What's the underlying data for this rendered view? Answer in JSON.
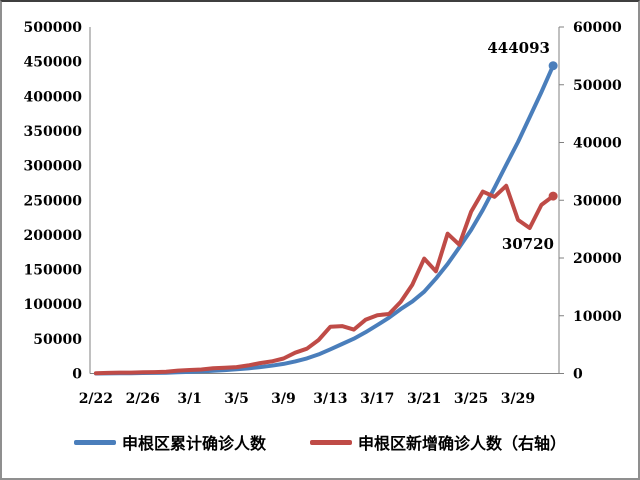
{
  "chart_data": {
    "type": "line",
    "title": "",
    "x": [
      "2/22",
      "2/23",
      "2/24",
      "2/25",
      "2/26",
      "2/27",
      "2/28",
      "2/29",
      "3/1",
      "3/2",
      "3/3",
      "3/4",
      "3/5",
      "3/6",
      "3/7",
      "3/8",
      "3/9",
      "3/10",
      "3/11",
      "3/12",
      "3/13",
      "3/14",
      "3/15",
      "3/16",
      "3/17",
      "3/18",
      "3/19",
      "3/20",
      "3/21",
      "3/22",
      "3/23",
      "3/24",
      "3/25",
      "3/26",
      "3/27",
      "3/28",
      "3/29",
      "3/30",
      "3/31",
      "4/1"
    ],
    "x_tick_every": 4,
    "x_tick_labels": [
      "2/22",
      "2/26",
      "3/1",
      "3/5",
      "3/9",
      "3/13",
      "3/17",
      "3/21",
      "3/25",
      "3/29"
    ],
    "grid": false,
    "legend_position": "bottom",
    "left_axis": {
      "min": 0,
      "max": 500000,
      "step": 50000,
      "tick_labels": [
        "0",
        "50000",
        "100000",
        "150000",
        "200000",
        "250000",
        "300000",
        "350000",
        "400000",
        "450000",
        "500000"
      ]
    },
    "right_axis": {
      "min": 0,
      "max": 60000,
      "step": 10000,
      "tick_labels": [
        "0",
        "10000",
        "20000",
        "30000",
        "40000",
        "50000",
        "60000"
      ]
    },
    "series": [
      {
        "name": "申根区累计确诊人数",
        "axis": "left",
        "color": "#4a7ebb",
        "label_color": "#5b8ed1",
        "end_label": "444093",
        "values": [
          50,
          150,
          300,
          450,
          650,
          900,
          1200,
          1700,
          2300,
          3000,
          3900,
          4900,
          6000,
          7400,
          9200,
          11300,
          13900,
          17500,
          21800,
          27600,
          34900,
          42500,
          50200,
          59500,
          69800,
          80500,
          93000,
          104000,
          118000,
          137000,
          158000,
          182000,
          207000,
          236000,
          268000,
          301000,
          334000,
          370000,
          406000,
          444093
        ]
      },
      {
        "name": "申根区新增确诊人数（右轴）",
        "axis": "right",
        "color": "#bf4b47",
        "label_color": "#c0504d",
        "end_label": "30720",
        "values": [
          50,
          100,
          150,
          150,
          200,
          250,
          300,
          500,
          600,
          700,
          900,
          1000,
          1100,
          1400,
          1800,
          2100,
          2600,
          3600,
          4300,
          5800,
          8100,
          8200,
          7600,
          9300,
          10100,
          10300,
          12400,
          15400,
          19900,
          17700,
          24200,
          22300,
          28000,
          31500,
          30600,
          32500,
          26600,
          25200,
          29200,
          30720
        ]
      }
    ]
  },
  "axis_color": "#808080"
}
